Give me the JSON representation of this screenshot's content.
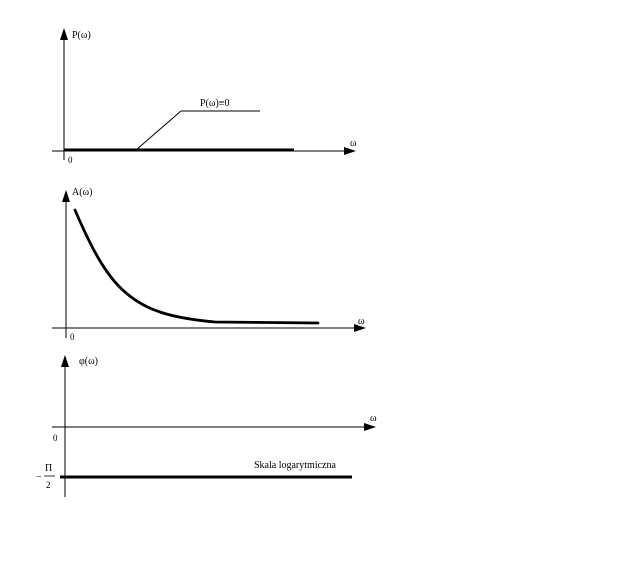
{
  "panel_p": {
    "ylabel": "P(ω)",
    "xlabel": "ω",
    "origin": "0",
    "annotation": "P(ω)≡0"
  },
  "panel_a": {
    "ylabel": "A(ω)",
    "xlabel": "ω",
    "origin": "0"
  },
  "panel_phi": {
    "ylabel": "φ(ω)",
    "xlabel": "ω",
    "origin": "0",
    "neg_sign": "−",
    "pi_num": "Π",
    "pi_den": "2",
    "note": "Skala logarytmiczna"
  }
}
